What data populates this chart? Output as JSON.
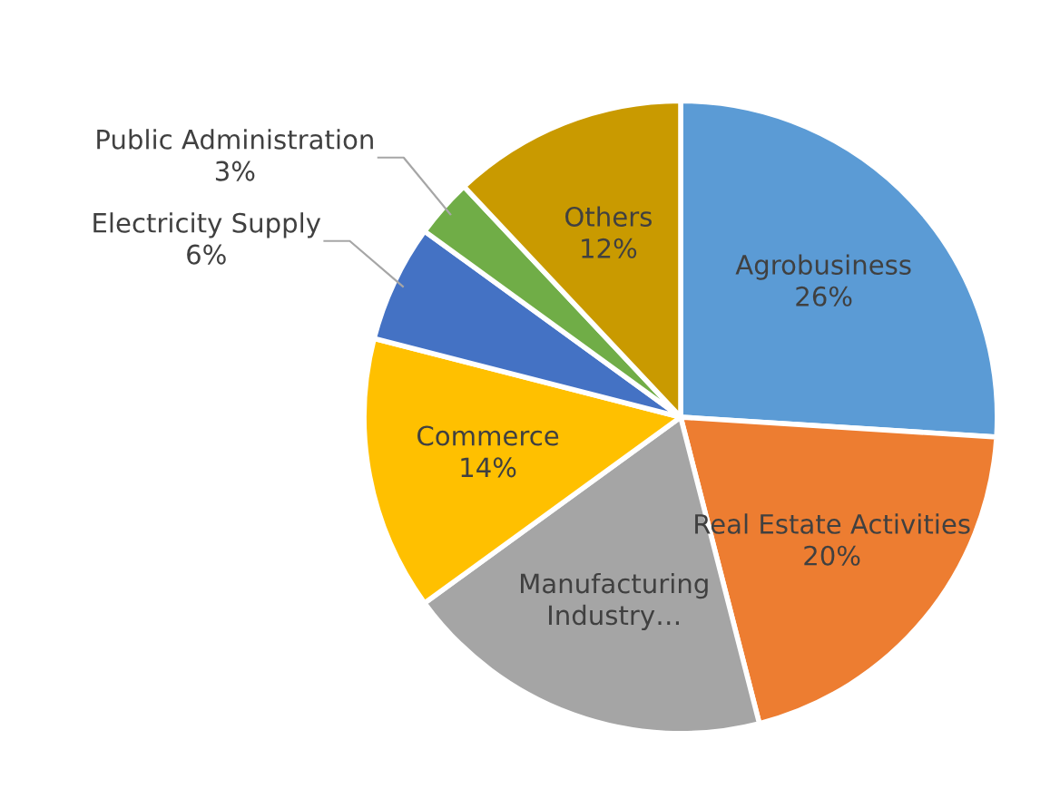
{
  "chart_data": {
    "type": "pie",
    "categories": [
      "Agrobusiness",
      "Real Estate Activities",
      "Manufacturing Industry…",
      "Commerce",
      "Electricity Supply",
      "Public Administration",
      "Others"
    ],
    "values": [
      26,
      20,
      19,
      14,
      6,
      3,
      12
    ],
    "colors": [
      "#5b9bd5",
      "#ed7d31",
      "#a5a5a5",
      "#ffc000",
      "#4472c4",
      "#70ad47",
      "#c99a00"
    ],
    "value_labels": [
      "26%",
      "20%",
      null,
      "14%",
      "6%",
      "3%",
      "12%"
    ],
    "legend": false
  }
}
